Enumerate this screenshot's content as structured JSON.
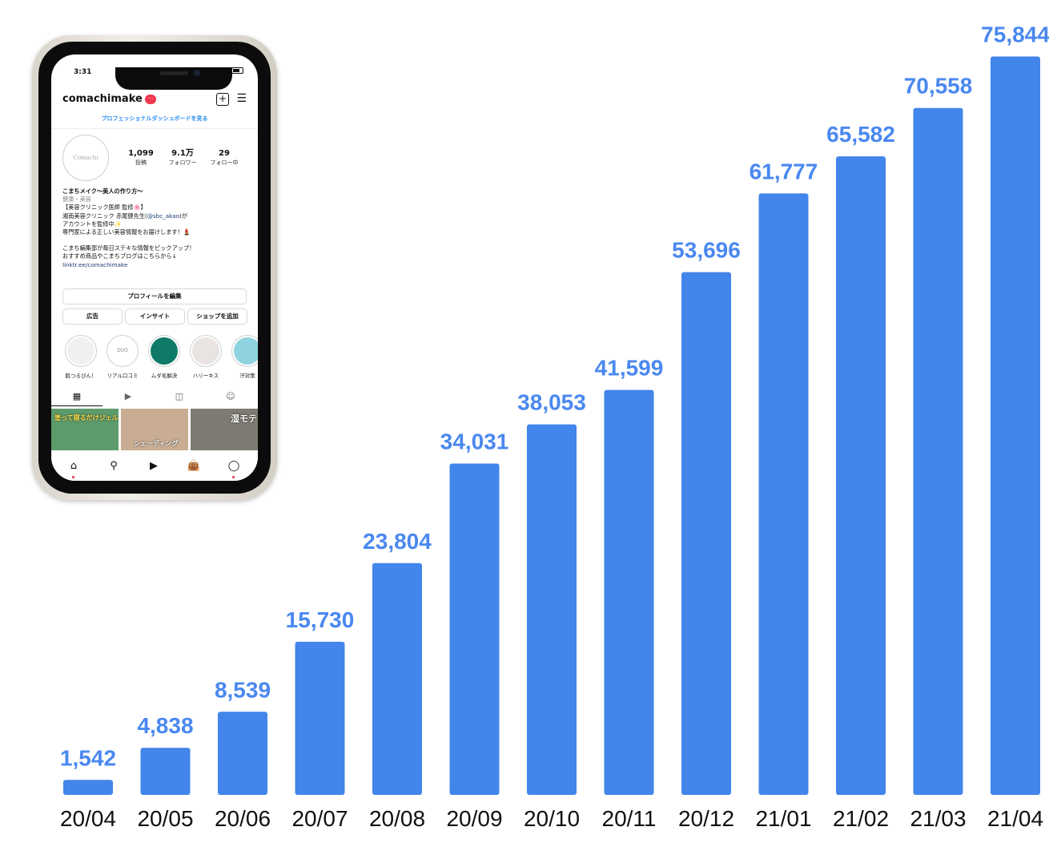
{
  "chart_data": {
    "type": "bar",
    "title": "",
    "xlabel": "",
    "ylabel": "",
    "ylim": [
      0,
      80000
    ],
    "grid": false,
    "bar_color": "#4285eb",
    "label_color": "#4a88f0",
    "categories": [
      "20/04",
      "20/05",
      "20/06",
      "20/07",
      "20/08",
      "20/09",
      "20/10",
      "20/11",
      "20/12",
      "21/01",
      "21/02",
      "21/03",
      "21/04"
    ],
    "values": [
      1542,
      4838,
      8539,
      15730,
      23804,
      34031,
      38053,
      41599,
      53696,
      61777,
      65582,
      70558,
      75844
    ],
    "value_labels": [
      "1,542",
      "4,838",
      "8,539",
      "15,730",
      "23,804",
      "34,031",
      "38,053",
      "41,599",
      "53,696",
      "61,777",
      "65,582",
      "70,558",
      "75,844"
    ]
  },
  "phone": {
    "status": {
      "time": "3:31"
    },
    "profile": {
      "username": "comachimake",
      "badge": "···",
      "dashboard_link": "プロフェッショナルダッシュボードを見る",
      "avatar_text": "Comachi",
      "stats": [
        {
          "value": "1,099",
          "label": "投稿"
        },
        {
          "value": "9.1万",
          "label": "フォロワー"
        },
        {
          "value": "29",
          "label": "フォロー中"
        }
      ],
      "bio": {
        "name": "こまちメイク〜美人の作り方〜",
        "category": "健康・美容",
        "line1": "【美容クリニック医師 監修🌸】",
        "line2_a": "湘南美容クリニック 赤尾健先生(",
        "mention": "@sbc_akao",
        "line2_b": ")が",
        "line3": "アカウントを監修中✨",
        "line4": "専門家による正しい美容情報をお届けします！💄",
        "line5": "こまち編集部が毎日ステキな情報をピックアップ！",
        "line6": "おすすめ商品やこまちブログはこちらから↓",
        "link": "linktr.ee/comachimake"
      },
      "buttons": {
        "edit": "プロフィールを編集",
        "ad": "広告",
        "insight": "インサイト",
        "shop": "ショップを追加"
      },
      "highlights": [
        {
          "label": "肌つるぴん！",
          "text": "",
          "color": "#eef1f0"
        },
        {
          "label": "リアル口コミ",
          "text": "DUO",
          "color": "#ffffff"
        },
        {
          "label": "ムダ毛解決",
          "text": "",
          "color": "#0f7a66"
        },
        {
          "label": "ハリーキス",
          "text": "",
          "color": "#e9e4e2"
        },
        {
          "label": "汗対策",
          "text": "",
          "color": "#8fd3e0"
        }
      ],
      "grid_posts": [
        {
          "text": "塗って寝るだけジェル",
          "color": "#5e9b6c"
        },
        {
          "text": "シェーディング",
          "color": "#c9ad93"
        },
        {
          "text": "湿モテ",
          "color": "#7f7a72"
        }
      ]
    },
    "icons": {
      "signal": "signal-icon",
      "wifi": "wifi-icon",
      "battery": "battery-icon"
    }
  }
}
